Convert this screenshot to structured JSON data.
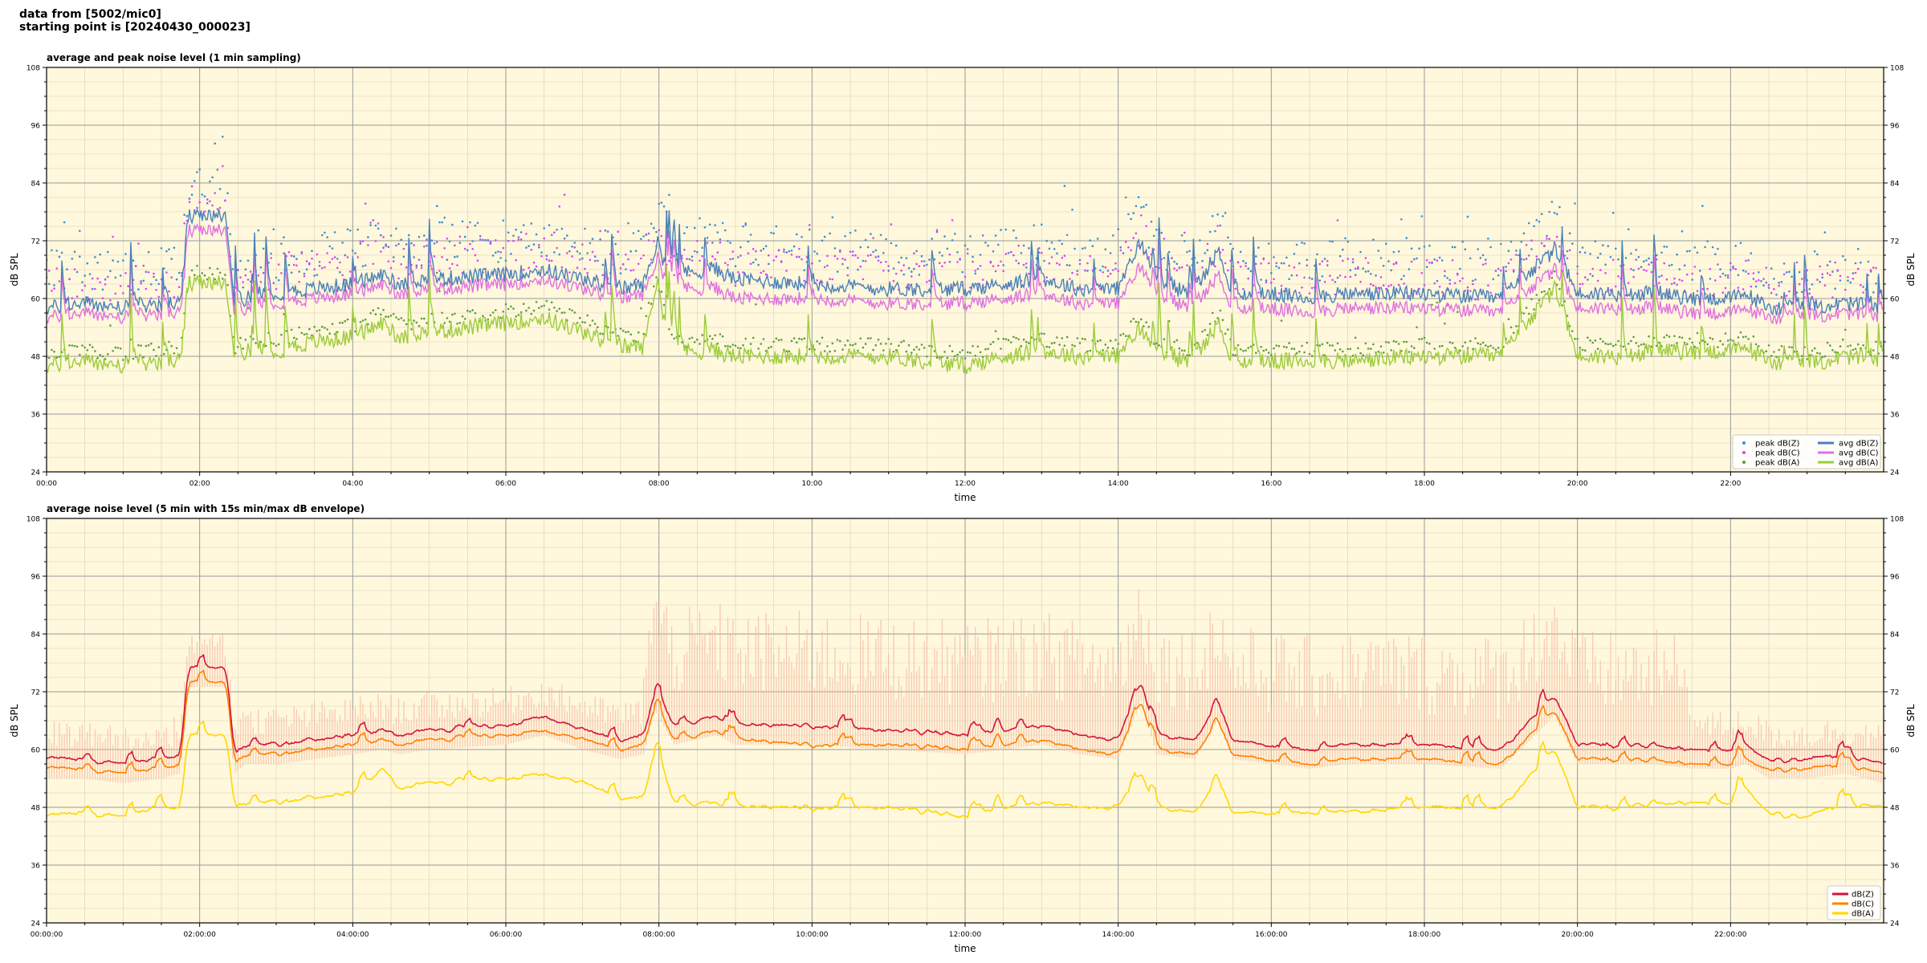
{
  "header": {
    "line1": "data from [5002/mic0]",
    "line2": "starting point is [20240430_000023]"
  },
  "colors": {
    "plot_bg": "#fff8dc",
    "peak_z": "#3a8fd4",
    "peak_c": "#e040fb",
    "peak_a": "#5a9e3a",
    "avg_z": "#4a80b8",
    "avg_c": "#e070e0",
    "avg_a": "#9ccc3a",
    "dbz": "#d4143c",
    "dbc": "#ff8000",
    "dba": "#ffd700",
    "envelope": "#f4b6a0"
  },
  "chart_data": [
    {
      "type": "line",
      "title": "average and peak noise level (1 min sampling)",
      "xlabel": "time",
      "ylabel": "dB SPL",
      "ylabel_right": "dB SPL",
      "ylim": [
        24,
        108
      ],
      "y_ticks": [
        24,
        36,
        48,
        60,
        72,
        84,
        96,
        108
      ],
      "x_ticks_hours": [
        0,
        2,
        4,
        6,
        8,
        10,
        12,
        14,
        16,
        18,
        20,
        22
      ],
      "x_tick_labels": [
        "00:00",
        "02:00",
        "04:00",
        "06:00",
        "08:00",
        "10:00",
        "12:00",
        "14:00",
        "16:00",
        "18:00",
        "20:00",
        "22:00"
      ],
      "xlim_hours": [
        0,
        24
      ],
      "grid": true,
      "legend": "bottom-right",
      "x_hours": [
        0,
        0.5,
        1,
        1.5,
        1.75,
        1.85,
        2,
        2.35,
        2.45,
        2.6,
        3,
        3.5,
        4,
        4.4,
        4.6,
        5,
        6,
        6.5,
        7,
        7.5,
        7.8,
        7.95,
        8.2,
        8.75,
        9,
        10,
        11,
        12,
        12.5,
        13,
        13.5,
        14,
        14.3,
        14.5,
        15,
        15.3,
        15.5,
        16,
        16.5,
        17,
        18,
        19,
        19.7,
        20,
        20.5,
        21,
        21.5,
        22,
        22.2,
        22.5,
        23,
        23.5,
        24
      ],
      "series": [
        {
          "name": "avg dB(Z)",
          "kind": "line",
          "color_key": "avg_z",
          "values": [
            58,
            59,
            58,
            59,
            59,
            77,
            77,
            77,
            58,
            60,
            61,
            62,
            63,
            65,
            63,
            64,
            65,
            66,
            64,
            62,
            63,
            70,
            65,
            66,
            64,
            63,
            62,
            62,
            63,
            64,
            62,
            62,
            72,
            63,
            61,
            70,
            61,
            61,
            60,
            61,
            61,
            60,
            70,
            61,
            61,
            61,
            60,
            60,
            61,
            58,
            58,
            59,
            58
          ]
        },
        {
          "name": "avg dB(C)",
          "kind": "line",
          "color_key": "avg_c",
          "values": [
            56,
            57,
            56,
            57,
            57,
            74,
            74,
            74,
            56,
            58,
            59,
            60,
            61,
            63,
            61,
            62,
            63,
            64,
            62,
            60,
            61,
            67,
            62,
            62,
            60,
            60,
            59,
            59,
            60,
            61,
            59,
            59,
            67,
            60,
            58,
            65,
            58,
            58,
            57,
            58,
            58,
            57,
            66,
            58,
            58,
            58,
            57,
            57,
            58,
            56,
            56,
            57,
            56
          ]
        },
        {
          "name": "avg dB(A)",
          "kind": "line",
          "color_key": "avg_a",
          "values": [
            46,
            47,
            46,
            47,
            47,
            63,
            63,
            63,
            47,
            49,
            49,
            51,
            52,
            55,
            52,
            53,
            55,
            56,
            53,
            50,
            50,
            62,
            49,
            49,
            48,
            48,
            48,
            46,
            48,
            49,
            48,
            48,
            54,
            48,
            47,
            55,
            47,
            47,
            47,
            47,
            48,
            48,
            62,
            48,
            48,
            49,
            49,
            49,
            50,
            47,
            46,
            48,
            47
          ]
        },
        {
          "name": "peak dB(Z)",
          "kind": "scatter",
          "color_key": "peak_z",
          "values": []
        },
        {
          "name": "peak dB(C)",
          "kind": "scatter",
          "color_key": "peak_c",
          "values": []
        },
        {
          "name": "peak dB(A)",
          "kind": "scatter",
          "color_key": "peak_a",
          "values": []
        }
      ],
      "legend_entries": [
        "peak dB(Z)",
        "peak dB(C)",
        "peak dB(A)",
        "avg dB(Z)",
        "avg dB(C)",
        "avg dB(A)"
      ]
    },
    {
      "type": "line",
      "title": "average noise level (5 min with 15s min/max dB envelope)",
      "xlabel": "time",
      "ylabel": "dB SPL",
      "ylabel_right": "dB SPL",
      "ylim": [
        24,
        108
      ],
      "y_ticks": [
        24,
        36,
        48,
        60,
        72,
        84,
        96,
        108
      ],
      "x_ticks_hours": [
        0,
        2,
        4,
        6,
        8,
        10,
        12,
        14,
        16,
        18,
        20,
        22
      ],
      "x_tick_labels": [
        "00:00:00",
        "02:00:00",
        "04:00:00",
        "06:00:00",
        "08:00:00",
        "10:00:00",
        "12:00:00",
        "14:00:00",
        "16:00:00",
        "18:00:00",
        "20:00:00",
        "22:00:00"
      ],
      "xlim_hours": [
        0,
        24
      ],
      "grid": true,
      "legend": "bottom-right",
      "x_hours": [
        0,
        0.5,
        1,
        1.5,
        1.75,
        1.85,
        2,
        2.35,
        2.45,
        2.6,
        3,
        3.5,
        4,
        4.4,
        4.6,
        5,
        6,
        6.5,
        7,
        7.5,
        7.8,
        7.95,
        8.2,
        8.75,
        9,
        10,
        11,
        12,
        12.5,
        13,
        13.5,
        14,
        14.3,
        14.5,
        15,
        15.3,
        15.5,
        16,
        16.5,
        17,
        18,
        19,
        19.7,
        20,
        20.5,
        21,
        21.5,
        22,
        22.2,
        22.5,
        23,
        23.5,
        24
      ],
      "series": [
        {
          "name": "dB(Z)",
          "kind": "line",
          "color_key": "dbz",
          "values": [
            58,
            58,
            57,
            58,
            59,
            77,
            77,
            77,
            59,
            61,
            61,
            62,
            63,
            64,
            63,
            64,
            65,
            67,
            64,
            62,
            63,
            72,
            65,
            67,
            65,
            65,
            64,
            63,
            64,
            65,
            63,
            62,
            74,
            63,
            62,
            70,
            62,
            61,
            60,
            61,
            61,
            60,
            71,
            61,
            61,
            61,
            60,
            60,
            61,
            58,
            58,
            59,
            57
          ]
        },
        {
          "name": "dB(C)",
          "kind": "line",
          "color_key": "dbc",
          "values": [
            56,
            56,
            55,
            56,
            57,
            74,
            74,
            74,
            57,
            59,
            59,
            60,
            61,
            62,
            61,
            62,
            63,
            64,
            62,
            60,
            61,
            69,
            62,
            64,
            62,
            61,
            61,
            60,
            61,
            62,
            60,
            59,
            70,
            60,
            59,
            66,
            59,
            58,
            57,
            58,
            58,
            57,
            68,
            58,
            58,
            58,
            57,
            57,
            58,
            56,
            56,
            57,
            55
          ]
        },
        {
          "name": "dB(A)",
          "kind": "line",
          "color_key": "dba",
          "values": [
            46,
            47,
            46,
            48,
            48,
            63,
            63,
            63,
            48,
            49,
            49,
            50,
            51,
            56,
            52,
            53,
            54,
            55,
            53,
            50,
            50,
            60,
            49,
            49,
            48,
            48,
            48,
            46,
            48,
            49,
            48,
            48,
            55,
            48,
            47,
            54,
            47,
            47,
            47,
            47,
            48,
            48,
            60,
            48,
            48,
            49,
            49,
            49,
            52,
            47,
            46,
            49,
            48
          ]
        }
      ],
      "legend_entries": [
        "dB(Z)",
        "dB(C)",
        "dB(A)"
      ]
    }
  ]
}
